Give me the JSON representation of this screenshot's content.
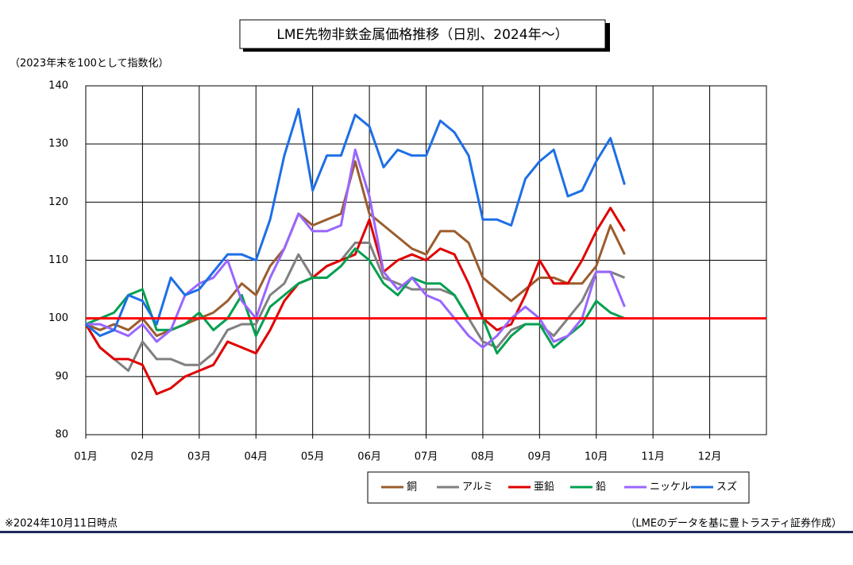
{
  "chart_data": {
    "type": "line",
    "title": "LME先物非鉄金属価格推移（日別、2024年～）",
    "y_label": "（2023年末を100として指数化）",
    "footnote": "※2024年10月11日時点",
    "source": "（LMEのデータを基に豊トラスティ証券作成）",
    "x": [
      1,
      1.25,
      1.5,
      1.75,
      2,
      2.25,
      2.5,
      2.75,
      3,
      3.25,
      3.5,
      3.75,
      4,
      4.25,
      4.5,
      4.75,
      5,
      5.25,
      5.5,
      5.75,
      6,
      6.25,
      6.5,
      6.75,
      7,
      7.25,
      7.5,
      7.75,
      8,
      8.25,
      8.5,
      8.75,
      9,
      9.25,
      9.5,
      9.75,
      10,
      10.25,
      10.5
    ],
    "xlim": [
      1,
      13
    ],
    "xticks": [
      {
        "value": 1,
        "label": "01月"
      },
      {
        "value": 2,
        "label": "02月"
      },
      {
        "value": 3,
        "label": "03月"
      },
      {
        "value": 4,
        "label": "04月"
      },
      {
        "value": 5,
        "label": "05月"
      },
      {
        "value": 6,
        "label": "06月"
      },
      {
        "value": 7,
        "label": "07月"
      },
      {
        "value": 8,
        "label": "08月"
      },
      {
        "value": 9,
        "label": "09月"
      },
      {
        "value": 10,
        "label": "10月"
      },
      {
        "value": 11,
        "label": "11月"
      },
      {
        "value": 12,
        "label": "12月"
      }
    ],
    "ylim": [
      80,
      140
    ],
    "yticks": [
      80,
      90,
      100,
      110,
      120,
      130,
      140
    ],
    "grid": true,
    "reference_line": 100,
    "reference_color": "#ff0000",
    "series": [
      {
        "name": "銅",
        "color": "#9b5d2e",
        "values": [
          99,
          98,
          99,
          98,
          100,
          97,
          98,
          99,
          100,
          101,
          103,
          106,
          104,
          109,
          112,
          118,
          116,
          117,
          118,
          127,
          118,
          116,
          114,
          112,
          111,
          115,
          115,
          113,
          107,
          105,
          103,
          105,
          107,
          107,
          106,
          106,
          109,
          116,
          111
        ]
      },
      {
        "name": "アルミ",
        "color": "#808080",
        "values": [
          99,
          95,
          93,
          91,
          96,
          93,
          93,
          92,
          92,
          94,
          98,
          99,
          99,
          104,
          106,
          111,
          107,
          109,
          110,
          113,
          113,
          107,
          106,
          105,
          105,
          105,
          104,
          100,
          96,
          95,
          98,
          99,
          99,
          97,
          100,
          103,
          108,
          108,
          107
        ]
      },
      {
        "name": "亜鉛",
        "color": "#e00000",
        "values": [
          99,
          95,
          93,
          93,
          92,
          87,
          88,
          90,
          91,
          92,
          96,
          95,
          94,
          98,
          103,
          106,
          107,
          109,
          110,
          111,
          117,
          108,
          110,
          111,
          110,
          112,
          111,
          106,
          100,
          98,
          99,
          104,
          110,
          106,
          106,
          110,
          115,
          119,
          115
        ]
      },
      {
        "name": "鉛",
        "color": "#00a050",
        "values": [
          99,
          100,
          101,
          104,
          105,
          98,
          98,
          99,
          101,
          98,
          100,
          104,
          97,
          102,
          104,
          106,
          107,
          107,
          109,
          112,
          110,
          106,
          104,
          107,
          106,
          106,
          104,
          100,
          100,
          94,
          97,
          99,
          99,
          95,
          97,
          99,
          103,
          101,
          100
        ]
      },
      {
        "name": "ニッケル",
        "color": "#9966ff",
        "values": [
          99,
          99,
          98,
          97,
          99,
          96,
          98,
          104,
          106,
          107,
          110,
          103,
          100,
          107,
          112,
          118,
          115,
          115,
          116,
          129,
          121,
          108,
          105,
          107,
          104,
          103,
          100,
          97,
          95,
          97,
          100,
          102,
          100,
          96,
          97,
          100,
          108,
          108,
          102
        ]
      },
      {
        "name": "スズ",
        "color": "#1e6fe6",
        "values": [
          99,
          97,
          98,
          104,
          103,
          99,
          107,
          104,
          105,
          108,
          111,
          111,
          110,
          117,
          128,
          136,
          122,
          128,
          128,
          135,
          133,
          126,
          129,
          128,
          128,
          134,
          132,
          128,
          117,
          117,
          116,
          124,
          127,
          129,
          121,
          122,
          127,
          131,
          123
        ]
      }
    ]
  }
}
